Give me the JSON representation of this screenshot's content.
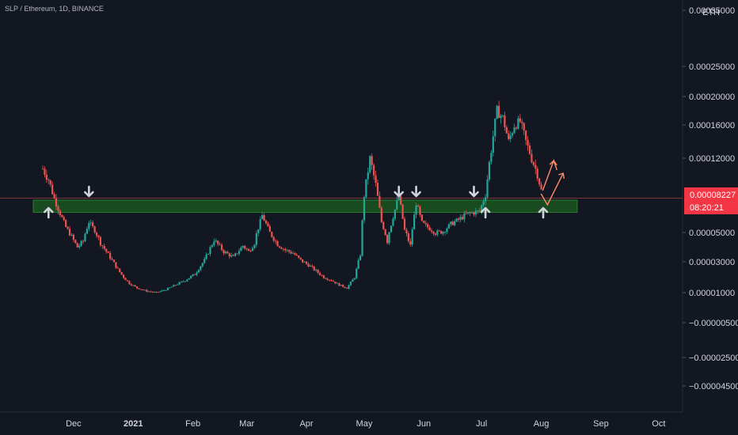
{
  "header": {
    "symbol_title": "SLP / Ethereum, 1D, BINANCE",
    "currency": "ETH"
  },
  "colors": {
    "background": "#131722",
    "up": "#26a69a",
    "down": "#ef5350",
    "zone_fill": "#1b5e20",
    "zone_border": "#2e7d32",
    "price_line": "#ef5350",
    "price_tag": "#f23645",
    "arrow": "#d1d4dc",
    "projection": "#ff8a65",
    "axis_text": "#d1d4dc"
  },
  "price_axis": {
    "tick_labels": [
      "0.00035000",
      "0.00025000",
      "0.00020000",
      "0.00016000",
      "0.00012000",
      "0.00005000",
      "0.00003000",
      "0.00001000",
      "−0.00000500",
      "−0.00002500",
      "−0.00004500"
    ],
    "current_price": "0.00008227",
    "countdown": "08:20:21"
  },
  "time_axis": {
    "tick_labels": [
      "Dec",
      "2021",
      "Feb",
      "Mar",
      "Apr",
      "May",
      "Jun",
      "Jul",
      "Aug",
      "Sep",
      "Oct"
    ]
  },
  "chart_data": {
    "type": "candlestick",
    "symbol": "SLP / Ethereum",
    "interval": "1D",
    "exchange": "BINANCE",
    "quote_currency": "ETH",
    "y_ticks": [
      "0.00035000",
      "0.00025000",
      "0.00020000",
      "0.00016000",
      "0.00012000",
      "0.00005000",
      "0.00003000",
      "0.00001000",
      "−0.00000500",
      "−0.00002500",
      "−0.00004500"
    ],
    "x_ticks": [
      "Dec",
      "2021",
      "Feb",
      "Mar",
      "Apr",
      "May",
      "Jun",
      "Jul",
      "Aug",
      "Sep",
      "Oct"
    ],
    "last_price": 8.227e-05,
    "support_zone": {
      "from": 6.9e-05,
      "to": 8.05e-05
    },
    "series": [
      {
        "x": [
          "2020-11-15",
          "2020-11-18",
          "2020-11-21",
          "2020-11-24",
          "2020-11-27",
          "2020-11-30",
          "2020-12-03",
          "2020-12-06",
          "2020-12-09",
          "2020-12-12",
          "2020-12-15",
          "2020-12-18",
          "2020-12-21",
          "2020-12-24",
          "2020-12-27",
          "2020-12-30",
          "2021-01-03",
          "2021-01-08",
          "2021-01-13",
          "2021-01-18",
          "2021-01-23",
          "2021-01-28",
          "2021-02-02",
          "2021-02-07",
          "2021-02-12",
          "2021-02-17",
          "2021-02-22",
          "2021-02-27",
          "2021-03-02",
          "2021-03-05",
          "2021-03-09",
          "2021-03-13",
          "2021-03-17",
          "2021-03-21",
          "2021-03-25",
          "2021-03-29",
          "2021-04-02",
          "2021-04-06",
          "2021-04-10",
          "2021-04-14",
          "2021-04-18",
          "2021-04-22",
          "2021-04-26",
          "2021-04-29",
          "2021-05-01",
          "2021-05-04",
          "2021-05-07",
          "2021-05-10",
          "2021-05-13",
          "2021-05-16",
          "2021-05-19",
          "2021-05-22",
          "2021-05-25",
          "2021-05-28",
          "2021-05-31",
          "2021-06-03",
          "2021-06-07",
          "2021-06-11",
          "2021-06-15",
          "2021-06-19",
          "2021-06-23",
          "2021-06-27",
          "2021-06-30",
          "2021-07-03",
          "2021-07-06",
          "2021-07-09",
          "2021-07-12",
          "2021-07-15",
          "2021-07-18",
          "2021-07-21",
          "2021-07-24",
          "2021-07-27",
          "2021-07-30",
          "2021-08-02"
        ],
        "close": [
          0.00011,
          0.0001,
          8.2e-05,
          6.8e-05,
          5.5e-05,
          4.7e-05,
          4e-05,
          4.4e-05,
          6e-05,
          5.2e-05,
          4.3e-05,
          3.7e-05,
          3.1e-05,
          2.5e-05,
          2e-05,
          1.6e-05,
          1.3e-05,
          1.1e-05,
          1e-05,
          1.2e-05,
          1.5e-05,
          1.8e-05,
          2.2e-05,
          3.1e-05,
          4.5e-05,
          3.7e-05,
          3.3e-05,
          4.1e-05,
          3.7e-05,
          4.3e-05,
          6.6e-05,
          5e-05,
          4.2e-05,
          3.8e-05,
          3.6e-05,
          3.1e-05,
          2.8e-05,
          2.4e-05,
          2e-05,
          1.8e-05,
          1.5e-05,
          1.3e-05,
          2e-05,
          3.5e-05,
          8.5e-05,
          0.00012,
          9.5e-05,
          6e-05,
          4.4e-05,
          6.5e-05,
          8.5e-05,
          5.2e-05,
          4.1e-05,
          7.8e-05,
          5.9e-05,
          5.5e-05,
          5e-05,
          5.1e-05,
          5.8e-05,
          6.2e-05,
          6.7e-05,
          6.9e-05,
          7e-05,
          8.6e-05,
          0.00013,
          0.00018,
          0.00017,
          0.00014,
          0.00016,
          0.000165,
          0.00014,
          0.00012,
          0.000105,
          8.2e-05
        ]
      }
    ],
    "annotations": [
      {
        "type": "up-arrow",
        "date": "2020-11-18"
      },
      {
        "type": "down-arrow",
        "date": "2020-12-09"
      },
      {
        "type": "down-arrow",
        "date": "2021-05-19"
      },
      {
        "type": "down-arrow",
        "date": "2021-05-28"
      },
      {
        "type": "down-arrow",
        "date": "2021-06-27"
      },
      {
        "type": "up-arrow",
        "date": "2021-07-03"
      },
      {
        "type": "up-arrow",
        "date": "2021-08-02"
      },
      {
        "type": "projection-arrows",
        "date": "2021-08-05"
      }
    ]
  }
}
